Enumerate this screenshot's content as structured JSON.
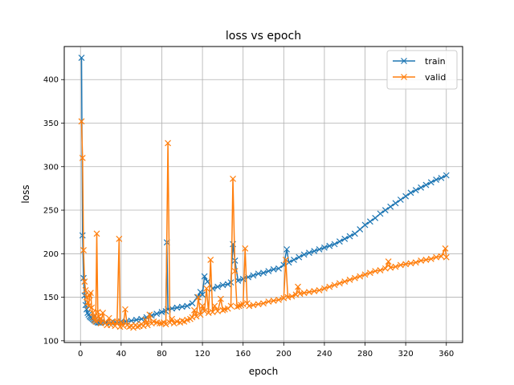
{
  "chart_data": {
    "type": "line",
    "title": "loss vs epoch",
    "xlabel": "epoch",
    "ylabel": "loss",
    "xlim": [
      -16,
      376
    ],
    "ylim": [
      98,
      438
    ],
    "xticks": [
      0,
      40,
      80,
      120,
      160,
      200,
      240,
      280,
      320,
      360
    ],
    "yticks": [
      100,
      150,
      200,
      250,
      300,
      350,
      400
    ],
    "grid": true,
    "legend_position": "top-right",
    "marker": "x",
    "series": [
      {
        "name": "train",
        "color": "#1f77b4",
        "points": [
          [
            1,
            425
          ],
          [
            2,
            221
          ],
          [
            3,
            172
          ],
          [
            4,
            152
          ],
          [
            5,
            141
          ],
          [
            6,
            136
          ],
          [
            7,
            132
          ],
          [
            8,
            130
          ],
          [
            9,
            128
          ],
          [
            10,
            127
          ],
          [
            11,
            126
          ],
          [
            12,
            125
          ],
          [
            13,
            124
          ],
          [
            14,
            123
          ],
          [
            15,
            122
          ],
          [
            16,
            122
          ],
          [
            17,
            121
          ],
          [
            18,
            121
          ],
          [
            19,
            121
          ],
          [
            20,
            121
          ],
          [
            25,
            121
          ],
          [
            30,
            121
          ],
          [
            35,
            121
          ],
          [
            40,
            122
          ],
          [
            45,
            122
          ],
          [
            50,
            123
          ],
          [
            55,
            124
          ],
          [
            60,
            125
          ],
          [
            65,
            127
          ],
          [
            70,
            129
          ],
          [
            75,
            131
          ],
          [
            80,
            133
          ],
          [
            84,
            134
          ],
          [
            85,
            213
          ],
          [
            86,
            136
          ],
          [
            90,
            137
          ],
          [
            95,
            138
          ],
          [
            100,
            139
          ],
          [
            105,
            140
          ],
          [
            110,
            143
          ],
          [
            115,
            150
          ],
          [
            118,
            156
          ],
          [
            120,
            153
          ],
          [
            122,
            174
          ],
          [
            125,
            168
          ],
          [
            130,
            160
          ],
          [
            135,
            162
          ],
          [
            140,
            164
          ],
          [
            145,
            165
          ],
          [
            148,
            167
          ],
          [
            150,
            211
          ],
          [
            152,
            192
          ],
          [
            155,
            169
          ],
          [
            160,
            171
          ],
          [
            165,
            173
          ],
          [
            170,
            175
          ],
          [
            175,
            177
          ],
          [
            180,
            178
          ],
          [
            185,
            180
          ],
          [
            190,
            182
          ],
          [
            195,
            183
          ],
          [
            200,
            187
          ],
          [
            203,
            205
          ],
          [
            205,
            190
          ],
          [
            210,
            193
          ],
          [
            215,
            196
          ],
          [
            220,
            199
          ],
          [
            225,
            201
          ],
          [
            230,
            203
          ],
          [
            235,
            205
          ],
          [
            240,
            207
          ],
          [
            245,
            209
          ],
          [
            250,
            211
          ],
          [
            255,
            214
          ],
          [
            260,
            217
          ],
          [
            265,
            220
          ],
          [
            270,
            223
          ],
          [
            275,
            228
          ],
          [
            280,
            233
          ],
          [
            285,
            237
          ],
          [
            290,
            241
          ],
          [
            295,
            246
          ],
          [
            300,
            250
          ],
          [
            305,
            254
          ],
          [
            310,
            258
          ],
          [
            315,
            262
          ],
          [
            320,
            266
          ],
          [
            325,
            270
          ],
          [
            330,
            273
          ],
          [
            335,
            276
          ],
          [
            340,
            279
          ],
          [
            345,
            282
          ],
          [
            350,
            285
          ],
          [
            355,
            287
          ],
          [
            360,
            290
          ]
        ]
      },
      {
        "name": "valid",
        "color": "#ff7f0e",
        "points": [
          [
            1,
            352
          ],
          [
            2,
            310
          ],
          [
            3,
            204
          ],
          [
            4,
            168
          ],
          [
            5,
            158
          ],
          [
            6,
            150
          ],
          [
            7,
            144
          ],
          [
            8,
            140
          ],
          [
            9,
            152
          ],
          [
            10,
            155
          ],
          [
            11,
            138
          ],
          [
            12,
            132
          ],
          [
            13,
            127
          ],
          [
            14,
            124
          ],
          [
            15,
            122
          ],
          [
            16,
            223
          ],
          [
            17,
            133
          ],
          [
            18,
            128
          ],
          [
            19,
            125
          ],
          [
            20,
            120
          ],
          [
            22,
            132
          ],
          [
            24,
            121
          ],
          [
            26,
            118
          ],
          [
            28,
            126
          ],
          [
            30,
            118
          ],
          [
            32,
            122
          ],
          [
            34,
            117
          ],
          [
            36,
            122
          ],
          [
            38,
            217
          ],
          [
            39,
            116
          ],
          [
            40,
            121
          ],
          [
            42,
            117
          ],
          [
            44,
            136
          ],
          [
            46,
            118
          ],
          [
            48,
            116
          ],
          [
            50,
            117
          ],
          [
            52,
            115
          ],
          [
            54,
            118
          ],
          [
            56,
            116
          ],
          [
            58,
            117
          ],
          [
            60,
            119
          ],
          [
            62,
            117
          ],
          [
            64,
            124
          ],
          [
            66,
            118
          ],
          [
            68,
            130
          ],
          [
            70,
            120
          ],
          [
            72,
            122
          ],
          [
            75,
            121
          ],
          [
            78,
            120
          ],
          [
            80,
            120
          ],
          [
            82,
            121
          ],
          [
            84,
            119
          ],
          [
            86,
            327
          ],
          [
            88,
            121
          ],
          [
            90,
            125
          ],
          [
            92,
            120
          ],
          [
            95,
            122
          ],
          [
            98,
            121
          ],
          [
            100,
            123
          ],
          [
            102,
            122
          ],
          [
            105,
            124
          ],
          [
            108,
            125
          ],
          [
            110,
            127
          ],
          [
            112,
            135
          ],
          [
            114,
            128
          ],
          [
            116,
            150
          ],
          [
            118,
            130
          ],
          [
            120,
            140
          ],
          [
            122,
            134
          ],
          [
            124,
            160
          ],
          [
            126,
            132
          ],
          [
            128,
            193
          ],
          [
            130,
            133
          ],
          [
            132,
            140
          ],
          [
            135,
            134
          ],
          [
            138,
            148
          ],
          [
            140,
            135
          ],
          [
            142,
            136
          ],
          [
            145,
            137
          ],
          [
            148,
            140
          ],
          [
            150,
            286
          ],
          [
            152,
            180
          ],
          [
            154,
            139
          ],
          [
            156,
            140
          ],
          [
            158,
            141
          ],
          [
            160,
            142
          ],
          [
            162,
            206
          ],
          [
            164,
            143
          ],
          [
            166,
            140
          ],
          [
            170,
            141
          ],
          [
            175,
            142
          ],
          [
            180,
            143
          ],
          [
            185,
            145
          ],
          [
            190,
            146
          ],
          [
            195,
            147
          ],
          [
            200,
            149
          ],
          [
            202,
            193
          ],
          [
            204,
            150
          ],
          [
            208,
            151
          ],
          [
            212,
            153
          ],
          [
            214,
            162
          ],
          [
            216,
            154
          ],
          [
            220,
            155
          ],
          [
            225,
            156
          ],
          [
            230,
            157
          ],
          [
            235,
            158
          ],
          [
            240,
            160
          ],
          [
            245,
            162
          ],
          [
            250,
            164
          ],
          [
            255,
            166
          ],
          [
            260,
            168
          ],
          [
            265,
            170
          ],
          [
            270,
            172
          ],
          [
            275,
            174
          ],
          [
            280,
            176
          ],
          [
            285,
            178
          ],
          [
            290,
            180
          ],
          [
            295,
            181
          ],
          [
            300,
            183
          ],
          [
            303,
            191
          ],
          [
            305,
            184
          ],
          [
            310,
            185
          ],
          [
            315,
            187
          ],
          [
            320,
            188
          ],
          [
            325,
            189
          ],
          [
            330,
            190
          ],
          [
            335,
            192
          ],
          [
            340,
            193
          ],
          [
            345,
            194
          ],
          [
            350,
            196
          ],
          [
            355,
            197
          ],
          [
            359,
            206
          ],
          [
            360,
            196
          ]
        ]
      }
    ]
  }
}
